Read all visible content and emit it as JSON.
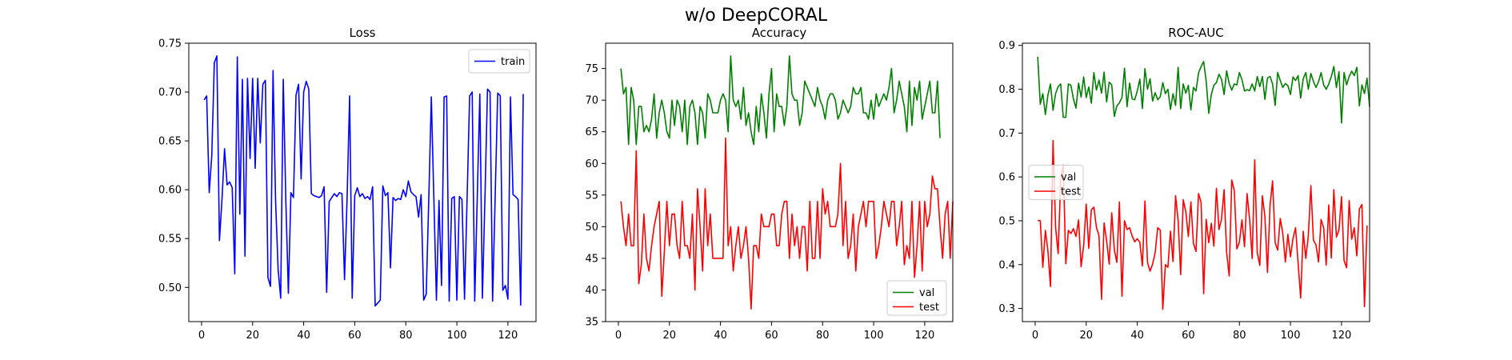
{
  "figure": {
    "title": "w/o DeepCORAL"
  },
  "chart_data": [
    {
      "type": "line",
      "title": "Loss",
      "xlim": [
        -5,
        131
      ],
      "ylim": [
        0.465,
        0.75
      ],
      "xticks": [
        0,
        20,
        40,
        60,
        80,
        100,
        120
      ],
      "yticks": [
        0.5,
        0.55,
        0.6,
        0.65,
        0.7,
        0.75
      ],
      "ytick_labels": [
        "0.50",
        "0.55",
        "0.60",
        "0.65",
        "0.70",
        "0.75"
      ],
      "legend_position": "upper right",
      "series": [
        {
          "name": "train",
          "color": "#0000ff",
          "values": [
            0.692,
            0.696,
            0.597,
            0.635,
            0.73,
            0.737,
            0.548,
            0.59,
            0.642,
            0.605,
            0.608,
            0.602,
            0.514,
            0.736,
            0.575,
            0.713,
            0.532,
            0.714,
            0.632,
            0.714,
            0.622,
            0.714,
            0.648,
            0.708,
            0.712,
            0.51,
            0.501,
            0.722,
            0.588,
            0.518,
            0.489,
            0.713,
            0.59,
            0.494,
            0.597,
            0.592,
            0.697,
            0.708,
            0.611,
            0.7,
            0.711,
            0.703,
            0.596,
            0.594,
            0.593,
            0.592,
            0.594,
            0.603,
            0.495,
            0.588,
            0.592,
            0.596,
            0.593,
            0.597,
            0.596,
            0.508,
            0.591,
            0.696,
            0.489,
            0.594,
            0.602,
            0.593,
            0.596,
            0.591,
            0.593,
            0.59,
            0.603,
            0.481,
            0.484,
            0.487,
            0.604,
            0.594,
            0.597,
            0.52,
            0.592,
            0.589,
            0.591,
            0.59,
            0.6,
            0.593,
            0.609,
            0.598,
            0.595,
            0.593,
            0.572,
            0.595,
            0.487,
            0.493,
            0.59,
            0.695,
            0.59,
            0.487,
            0.589,
            0.502,
            0.695,
            0.696,
            0.486,
            0.591,
            0.593,
            0.487,
            0.593,
            0.59,
            0.488,
            0.59,
            0.696,
            0.7,
            0.486,
            0.593,
            0.698,
            0.489,
            0.591,
            0.703,
            0.7,
            0.486,
            0.592,
            0.699,
            0.696,
            0.497,
            0.502,
            0.488,
            0.695,
            0.595,
            0.593,
            0.59,
            0.482,
            0.698
          ]
        }
      ]
    },
    {
      "type": "line",
      "title": "Accuracy",
      "xlim": [
        -5,
        131
      ],
      "ylim": [
        35,
        79
      ],
      "xticks": [
        0,
        20,
        40,
        60,
        80,
        100,
        120
      ],
      "yticks": [
        35,
        40,
        45,
        50,
        55,
        60,
        65,
        70,
        75
      ],
      "ytick_labels": [
        "35",
        "40",
        "45",
        "50",
        "55",
        "60",
        "65",
        "70",
        "75"
      ],
      "legend_position": "lower right",
      "series": [
        {
          "name": "val",
          "color": "#008000",
          "values": [
            75,
            71,
            72,
            63,
            72,
            70,
            63,
            69,
            69,
            65,
            66,
            65,
            67,
            71,
            64,
            68,
            70,
            68,
            65,
            64,
            70,
            66,
            70,
            69,
            65,
            70,
            63,
            69,
            70,
            68,
            63,
            69,
            68,
            64,
            71,
            70,
            68,
            68,
            68,
            70,
            71,
            70,
            65,
            77,
            70,
            69,
            70,
            67,
            72,
            66,
            68,
            65,
            63,
            69,
            65,
            71,
            68,
            64,
            71,
            75,
            65,
            71,
            69,
            69,
            66,
            69,
            77,
            71,
            70,
            70,
            66,
            68,
            73,
            72,
            71,
            70,
            69,
            72,
            70,
            69,
            67,
            70,
            71,
            71,
            70,
            67,
            68,
            70,
            69,
            68,
            69,
            72,
            71,
            71,
            72,
            68,
            68,
            67,
            70,
            67,
            71,
            69,
            70,
            71,
            70,
            72,
            75,
            68,
            70,
            73,
            71,
            69,
            65,
            73,
            66,
            72,
            70,
            73,
            67,
            69,
            71,
            73,
            68,
            68,
            73,
            64
          ]
        },
        {
          "name": "test",
          "color": "#ff0000",
          "values": [
            54,
            50,
            47,
            52,
            47,
            47,
            62,
            41,
            44,
            52,
            45,
            43,
            47,
            50,
            52,
            54,
            39,
            46,
            54,
            47,
            52,
            52,
            47,
            45,
            54,
            47,
            47,
            45,
            52,
            40,
            56,
            50,
            43,
            56,
            47,
            52,
            45,
            45,
            45,
            45,
            45,
            64,
            47,
            50,
            43,
            47,
            50,
            45,
            47,
            50,
            45,
            37,
            47,
            47,
            45,
            52,
            50,
            50,
            50,
            52,
            52,
            47,
            47,
            52,
            54,
            54,
            45,
            52,
            47,
            50,
            45,
            50,
            50,
            43,
            54,
            45,
            45,
            54,
            45,
            56,
            52,
            54,
            50,
            50,
            50,
            52,
            60,
            47,
            54,
            45,
            47,
            52,
            43,
            50,
            52,
            54,
            50,
            54,
            54,
            54,
            45,
            47,
            50,
            54,
            52,
            50,
            54,
            54,
            47,
            50,
            54,
            44,
            47,
            45,
            54,
            42,
            47,
            54,
            43,
            54,
            50,
            52,
            58,
            56,
            56,
            50,
            45,
            52,
            54,
            45,
            54
          ]
        }
      ]
    },
    {
      "type": "line",
      "title": "ROC-AUC",
      "xlim": [
        -5,
        131
      ],
      "ylim": [
        0.27,
        0.905
      ],
      "xticks": [
        0,
        20,
        40,
        60,
        80,
        100,
        120
      ],
      "yticks": [
        0.3,
        0.4,
        0.5,
        0.6,
        0.7,
        0.8,
        0.9
      ],
      "ytick_labels": [
        "0.3",
        "0.4",
        "0.5",
        "0.6",
        "0.7",
        "0.8",
        "0.9"
      ],
      "legend_position": "center left",
      "series": [
        {
          "name": "val",
          "color": "#008000",
          "values": [
            0.874,
            0.766,
            0.79,
            0.742,
            0.787,
            0.812,
            0.752,
            0.79,
            0.806,
            0.812,
            0.736,
            0.736,
            0.812,
            0.809,
            0.778,
            0.757,
            0.814,
            0.782,
            0.828,
            0.781,
            0.805,
            0.768,
            0.838,
            0.798,
            0.821,
            0.791,
            0.839,
            0.771,
            0.816,
            0.81,
            0.738,
            0.762,
            0.769,
            0.781,
            0.848,
            0.76,
            0.814,
            0.778,
            0.776,
            0.796,
            0.823,
            0.756,
            0.847,
            0.8,
            0.824,
            0.773,
            0.792,
            0.776,
            0.783,
            0.815,
            0.79,
            0.8,
            0.754,
            0.79,
            0.763,
            0.85,
            0.756,
            0.812,
            0.791,
            0.809,
            0.753,
            0.804,
            0.796,
            0.837,
            0.852,
            0.863,
            0.818,
            0.745,
            0.788,
            0.809,
            0.815,
            0.834,
            0.823,
            0.788,
            0.842,
            0.813,
            0.798,
            0.812,
            0.81,
            0.838,
            0.822,
            0.796,
            0.799,
            0.797,
            0.812,
            0.796,
            0.829,
            0.806,
            0.829,
            0.777,
            0.826,
            0.829,
            0.812,
            0.763,
            0.838,
            0.82,
            0.804,
            0.813,
            0.808,
            0.788,
            0.828,
            0.82,
            0.831,
            0.78,
            0.824,
            0.838,
            0.8,
            0.836,
            0.818,
            0.804,
            0.817,
            0.838,
            0.81,
            0.8,
            0.812,
            0.829,
            0.852,
            0.804,
            0.84,
            0.723,
            0.838,
            0.81,
            0.829,
            0.841,
            0.831,
            0.85,
            0.762,
            0.81,
            0.79,
            0.825,
            0.76
          ]
        },
        {
          "name": "test",
          "color": "#ff0000",
          "values": [
            0.501,
            0.5,
            0.394,
            0.478,
            0.431,
            0.35,
            0.683,
            0.485,
            0.425,
            0.592,
            0.627,
            0.402,
            0.478,
            0.471,
            0.482,
            0.464,
            0.502,
            0.395,
            0.444,
            0.538,
            0.437,
            0.525,
            0.531,
            0.485,
            0.466,
            0.321,
            0.495,
            0.454,
            0.401,
            0.518,
            0.434,
            0.405,
            0.543,
            0.328,
            0.5,
            0.48,
            0.484,
            0.465,
            0.452,
            0.459,
            0.451,
            0.397,
            0.545,
            0.405,
            0.385,
            0.401,
            0.427,
            0.484,
            0.479,
            0.298,
            0.4,
            0.394,
            0.476,
            0.407,
            0.557,
            0.501,
            0.377,
            0.548,
            0.521,
            0.464,
            0.543,
            0.448,
            0.43,
            0.562,
            0.542,
            0.334,
            0.503,
            0.45,
            0.494,
            0.442,
            0.574,
            0.48,
            0.504,
            0.571,
            0.428,
            0.374,
            0.593,
            0.569,
            0.436,
            0.451,
            0.502,
            0.441,
            0.562,
            0.504,
            0.414,
            0.639,
            0.427,
            0.398,
            0.557,
            0.509,
            0.382,
            0.535,
            0.591,
            0.45,
            0.433,
            0.505,
            0.471,
            0.406,
            0.469,
            0.418,
            0.46,
            0.484,
            0.403,
            0.324,
            0.476,
            0.414,
            0.466,
            0.58,
            0.456,
            0.445,
            0.406,
            0.503,
            0.484,
            0.399,
            0.536,
            0.415,
            0.571,
            0.463,
            0.479,
            0.555,
            0.409,
            0.393,
            0.546,
            0.458,
            0.484,
            0.42,
            0.527,
            0.537,
            0.304,
            0.489
          ]
        }
      ]
    }
  ]
}
